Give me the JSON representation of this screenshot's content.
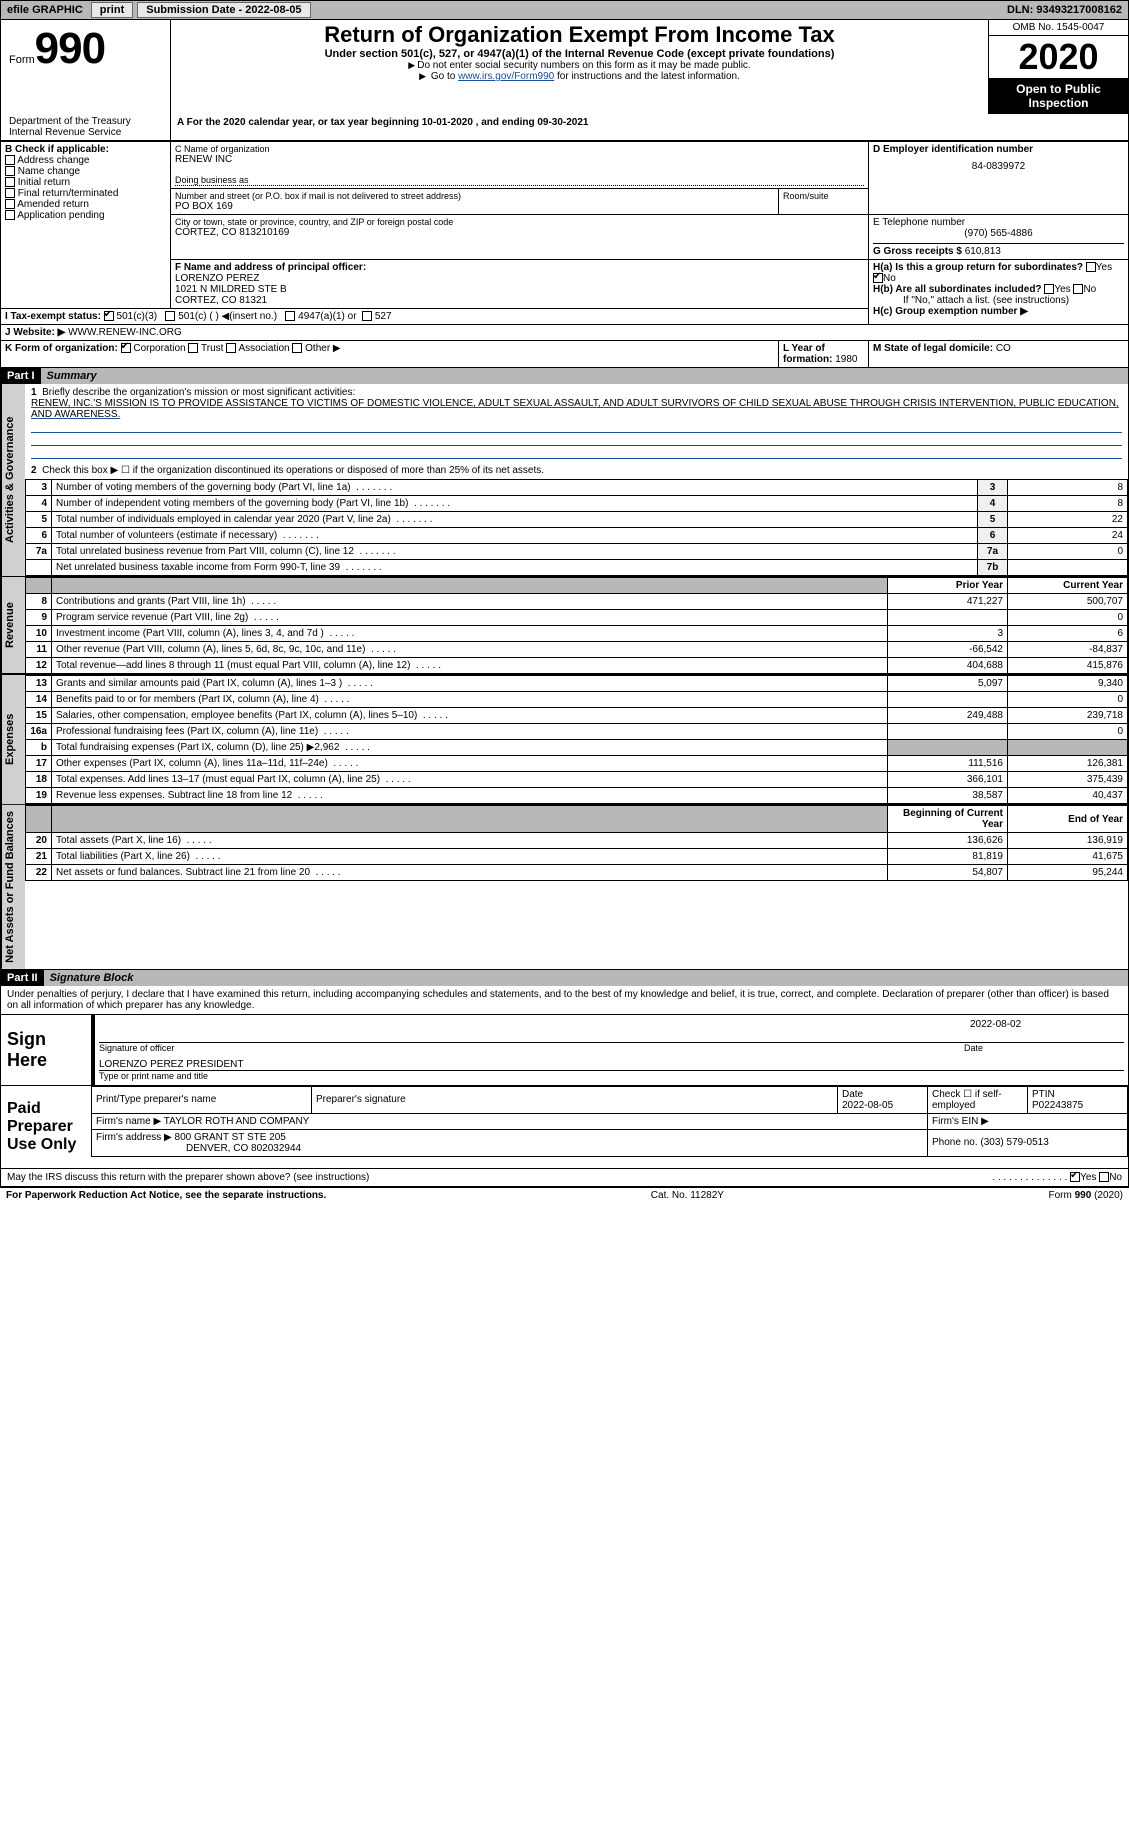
{
  "topbar": {
    "efile": "efile GRAPHIC",
    "print": "print",
    "submission_label": "Submission Date -",
    "submission_date": "2022-08-05",
    "dln_label": "DLN:",
    "dln": "93493217008162"
  },
  "header": {
    "form_word": "Form",
    "form_no": "990",
    "title": "Return of Organization Exempt From Income Tax",
    "subtitle": "Under section 501(c), 527, or 4947(a)(1) of the Internal Revenue Code (except private foundations)",
    "note1": "Do not enter social security numbers on this form as it may be made public.",
    "note2_pre": "Go to ",
    "note2_link": "www.irs.gov/Form990",
    "note2_post": " for instructions and the latest information.",
    "omb": "OMB No. 1545-0047",
    "year": "2020",
    "open_pub": "Open to Public Inspection",
    "dept": "Department of the Treasury Internal Revenue Service",
    "calendar_line_a": "For the 2020 calendar year, or tax year beginning ",
    "calendar_begin": "10-01-2020",
    "calendar_mid": " , and ending ",
    "calendar_end": "09-30-2021"
  },
  "boxB": {
    "title": "B Check if applicable:",
    "opts": [
      "Address change",
      "Name change",
      "Initial return",
      "Final return/terminated",
      "Amended return",
      "Application pending"
    ]
  },
  "boxC": {
    "label": "C Name of organization",
    "name": "RENEW INC",
    "dba_label": "Doing business as",
    "street_label": "Number and street (or P.O. box if mail is not delivered to street address)",
    "street": "PO BOX 169",
    "room_label": "Room/suite",
    "city_label": "City or town, state or province, country, and ZIP or foreign postal code",
    "city": "CORTEZ, CO  813210169"
  },
  "boxD": {
    "label": "D Employer identification number",
    "value": "84-0839972"
  },
  "boxE": {
    "label": "E Telephone number",
    "value": "(970) 565-4886"
  },
  "boxG": {
    "label": "G Gross receipts $",
    "value": "610,813"
  },
  "boxF": {
    "label": "F  Name and address of principal officer:",
    "name": "LORENZO PEREZ",
    "addr1": "1021 N MILDRED STE B",
    "addr2": "CORTEZ, CO  81321"
  },
  "boxH": {
    "a_label": "H(a)  Is this a group return for subordinates?",
    "b_label": "H(b)  Are all subordinates included?",
    "b_note": "If \"No,\" attach a list. (see instructions)",
    "c_label": "H(c)  Group exemption number ▶",
    "yes": "Yes",
    "no": "No"
  },
  "boxI": {
    "label": "I    Tax-exempt status:",
    "o1": "501(c)(3)",
    "o2": "501(c) (  ) ◀(insert no.)",
    "o3": "4947(a)(1) or",
    "o4": "527"
  },
  "boxJ": {
    "label": "J   Website: ▶",
    "value": "WWW.RENEW-INC.ORG"
  },
  "boxK": {
    "label": "K Form of organization:",
    "o1": "Corporation",
    "o2": "Trust",
    "o3": "Association",
    "o4": "Other ▶"
  },
  "boxL": {
    "label": "L Year of formation:",
    "value": "1980"
  },
  "boxM": {
    "label": "M State of legal domicile:",
    "value": "CO"
  },
  "partI": {
    "part": "Part I",
    "title": "Summary",
    "line1_label": "Briefly describe the organization's mission or most significant activities:",
    "line1_text": "RENEW, INC.'S MISSION IS TO PROVIDE ASSISTANCE TO VICTIMS OF DOMESTIC VIOLENCE, ADULT SEXUAL ASSAULT, AND ADULT SURVIVORS OF CHILD SEXUAL ABUSE THROUGH CRISIS INTERVENTION, PUBLIC EDUCATION, AND AWARENESS.",
    "line2": "Check this box ▶ ☐  if the organization discontinued its operations or disposed of more than 25% of its net assets.",
    "side_gov": "Activities & Governance",
    "side_rev": "Revenue",
    "side_exp": "Expenses",
    "side_net": "Net Assets or Fund Balances",
    "col_prior": "Prior Year",
    "col_current": "Current Year",
    "col_begin": "Beginning of Current Year",
    "col_end": "End of Year",
    "lines_gov": [
      {
        "n": "3",
        "d": "Number of voting members of the governing body (Part VI, line 1a)",
        "box": "3",
        "v": "8"
      },
      {
        "n": "4",
        "d": "Number of independent voting members of the governing body (Part VI, line 1b)",
        "box": "4",
        "v": "8"
      },
      {
        "n": "5",
        "d": "Total number of individuals employed in calendar year 2020 (Part V, line 2a)",
        "box": "5",
        "v": "22"
      },
      {
        "n": "6",
        "d": "Total number of volunteers (estimate if necessary)",
        "box": "6",
        "v": "24"
      },
      {
        "n": "7a",
        "d": "Total unrelated business revenue from Part VIII, column (C), line 12",
        "box": "7a",
        "v": "0"
      },
      {
        "n": "",
        "d": "Net unrelated business taxable income from Form 990-T, line 39",
        "box": "7b",
        "v": ""
      }
    ],
    "lines_rev": [
      {
        "n": "8",
        "d": "Contributions and grants (Part VIII, line 1h)",
        "py": "471,227",
        "cy": "500,707"
      },
      {
        "n": "9",
        "d": "Program service revenue (Part VIII, line 2g)",
        "py": "",
        "cy": "0"
      },
      {
        "n": "10",
        "d": "Investment income (Part VIII, column (A), lines 3, 4, and 7d )",
        "py": "3",
        "cy": "6"
      },
      {
        "n": "11",
        "d": "Other revenue (Part VIII, column (A), lines 5, 6d, 8c, 9c, 10c, and 11e)",
        "py": "-66,542",
        "cy": "-84,837"
      },
      {
        "n": "12",
        "d": "Total revenue—add lines 8 through 11 (must equal Part VIII, column (A), line 12)",
        "py": "404,688",
        "cy": "415,876"
      }
    ],
    "lines_exp": [
      {
        "n": "13",
        "d": "Grants and similar amounts paid (Part IX, column (A), lines 1–3 )",
        "py": "5,097",
        "cy": "9,340"
      },
      {
        "n": "14",
        "d": "Benefits paid to or for members (Part IX, column (A), line 4)",
        "py": "",
        "cy": "0"
      },
      {
        "n": "15",
        "d": "Salaries, other compensation, employee benefits (Part IX, column (A), lines 5–10)",
        "py": "249,488",
        "cy": "239,718"
      },
      {
        "n": "16a",
        "d": "Professional fundraising fees (Part IX, column (A), line 11e)",
        "py": "",
        "cy": "0"
      },
      {
        "n": "b",
        "d": "Total fundraising expenses (Part IX, column (D), line 25) ▶2,962",
        "py": "__grey__",
        "cy": "__grey__"
      },
      {
        "n": "17",
        "d": "Other expenses (Part IX, column (A), lines 11a–11d, 11f–24e)",
        "py": "111,516",
        "cy": "126,381"
      },
      {
        "n": "18",
        "d": "Total expenses. Add lines 13–17 (must equal Part IX, column (A), line 25)",
        "py": "366,101",
        "cy": "375,439"
      },
      {
        "n": "19",
        "d": "Revenue less expenses. Subtract line 18 from line 12",
        "py": "38,587",
        "cy": "40,437"
      }
    ],
    "lines_net": [
      {
        "n": "20",
        "d": "Total assets (Part X, line 16)",
        "py": "136,626",
        "cy": "136,919"
      },
      {
        "n": "21",
        "d": "Total liabilities (Part X, line 26)",
        "py": "81,819",
        "cy": "41,675"
      },
      {
        "n": "22",
        "d": "Net assets or fund balances. Subtract line 21 from line 20",
        "py": "54,807",
        "cy": "95,244"
      }
    ]
  },
  "partII": {
    "part": "Part II",
    "title": "Signature Block",
    "declaration": "Under penalties of perjury, I declare that I have examined this return, including accompanying schedules and statements, and to the best of my knowledge and belief, it is true, correct, and complete. Declaration of preparer (other than officer) is based on all information of which preparer has any knowledge.",
    "sign_here": "Sign Here",
    "sig_officer": "Signature of officer",
    "sig_date_label": "Date",
    "sig_date": "2022-08-02",
    "sig_name": "LORENZO PEREZ  PRESIDENT",
    "sig_name_label": "Type or print name and title",
    "paid_label": "Paid Preparer Use Only",
    "prep_name_label": "Print/Type preparer's name",
    "prep_sig_label": "Preparer's signature",
    "prep_date_label": "Date",
    "prep_date": "2022-08-05",
    "self_emp": "Check ☐ if self-employed",
    "ptin_label": "PTIN",
    "ptin": "P02243875",
    "firm_name_label": "Firm's name    ▶",
    "firm_name": "TAYLOR ROTH AND COMPANY",
    "firm_ein_label": "Firm's EIN ▶",
    "firm_addr_label": "Firm's address ▶",
    "firm_addr1": "800 GRANT ST STE 205",
    "firm_addr2": "DENVER, CO  802032944",
    "phone_label": "Phone no.",
    "phone": "(303) 579-0513",
    "may_irs": "May the IRS discuss this return with the preparer shown above? (see instructions)",
    "yes": "Yes",
    "no": "No"
  },
  "footer": {
    "left": "For Paperwork Reduction Act Notice, see the separate instructions.",
    "mid": "Cat. No. 11282Y",
    "right": "Form 990 (2020)"
  },
  "colors": {
    "grey_bg": "#b8b8b8",
    "link_blue": "#1a4fa3"
  }
}
